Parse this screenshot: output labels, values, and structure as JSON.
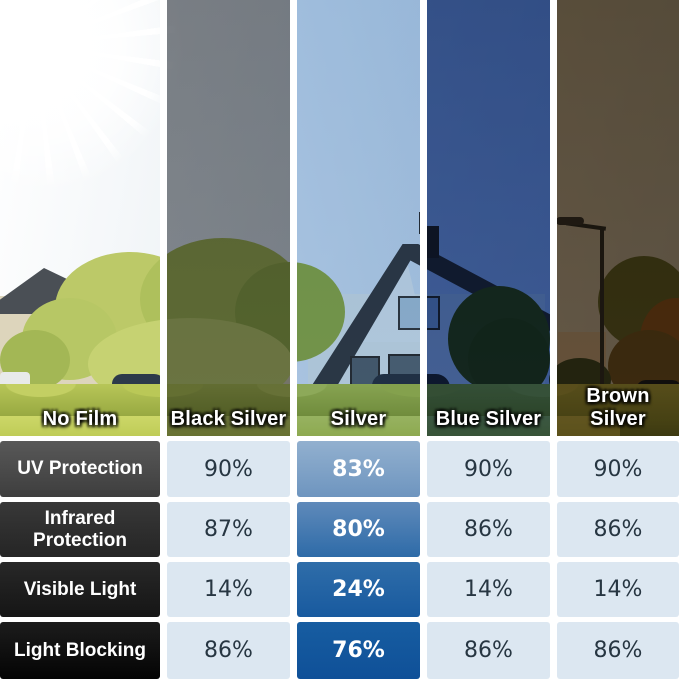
{
  "photo": {
    "labels": [
      "No Film",
      "Black Silver",
      "Silver",
      "Blue Silver",
      "Brown Silver"
    ],
    "scene_description": "sunny street with white house, trees, hedge, street lamp and cars"
  },
  "table": {
    "rows": [
      {
        "label": "UV Protection",
        "values": [
          "90%",
          "83%",
          "90%",
          "90%"
        ]
      },
      {
        "label": "Infrared Protection",
        "values": [
          "87%",
          "80%",
          "86%",
          "86%"
        ]
      },
      {
        "label": "Visible Light",
        "values": [
          "14%",
          "24%",
          "14%",
          "14%"
        ]
      },
      {
        "label": "Light Blocking",
        "values": [
          "86%",
          "76%",
          "86%",
          "86%"
        ]
      }
    ],
    "highlight_column": "Silver",
    "highlight_column_index": 2
  },
  "chart_data": {
    "type": "table",
    "columns": [
      "No Film",
      "Black Silver",
      "Silver",
      "Blue Silver",
      "Brown Silver"
    ],
    "metrics": [
      "UV Protection",
      "Infrared Protection",
      "Visible Light",
      "Light Blocking"
    ],
    "series": [
      {
        "name": "Black Silver",
        "values": [
          90,
          87,
          14,
          86
        ],
        "unit": "%"
      },
      {
        "name": "Silver",
        "values": [
          83,
          80,
          24,
          76
        ],
        "unit": "%"
      },
      {
        "name": "Blue Silver",
        "values": [
          90,
          86,
          14,
          86
        ],
        "unit": "%"
      },
      {
        "name": "Brown Silver",
        "values": [
          90,
          86,
          14,
          86
        ],
        "unit": "%"
      }
    ],
    "highlighted_series": "Silver",
    "legend_position": "none",
    "notes": "No Film column shows reference photo only; metric labels occupy its table column"
  },
  "colors": {
    "value_cell_bg": "#dce7f1",
    "value_text": "#273642",
    "header_gradient_top": "#585858",
    "header_gradient_bottom": "#040404",
    "highlight_gradient_top": "#92b0cf",
    "highlight_gradient_bottom": "#0f5098",
    "tint_black_silver": "#84888d",
    "tint_silver": "#b5cfe9",
    "tint_blue_silver": "#41609a",
    "tint_brown_silver": "#6f5c49"
  }
}
